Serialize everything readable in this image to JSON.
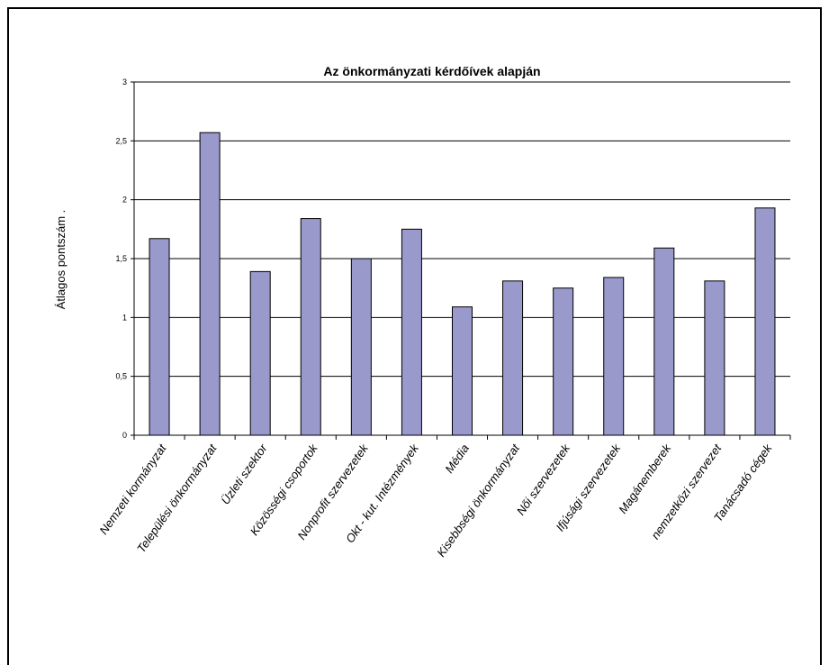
{
  "chart_data": {
    "type": "bar",
    "title": "Az önkormányzati kérdőívek alapján",
    "xlabel": "",
    "ylabel": "Átlagos pontszám .",
    "ylim": [
      0,
      3
    ],
    "yticks": [
      "0",
      "0,5",
      "1",
      "1,5",
      "2",
      "2,5",
      "3"
    ],
    "ytick_values": [
      0,
      0.5,
      1,
      1.5,
      2,
      2.5,
      3
    ],
    "grid": true,
    "bar_color": "#9999cc",
    "categories": [
      "Nemzeti kormányzat",
      "Települési önkormányzat",
      "Üzleti szektor",
      "Közösségi csoportok",
      "Nonprofit szervezetek",
      "Okt - kut. Intézmények",
      "Média",
      "Kisebbségi önkormányzat",
      "Női szervezetek",
      "Ifjúsági szervezetek",
      "Magánemberek",
      "nemzetközi szervezet",
      "Tanácsadó cégek"
    ],
    "values": [
      1.67,
      2.57,
      1.39,
      1.84,
      1.5,
      1.75,
      1.09,
      1.31,
      1.25,
      1.34,
      1.59,
      1.31,
      1.93
    ]
  }
}
